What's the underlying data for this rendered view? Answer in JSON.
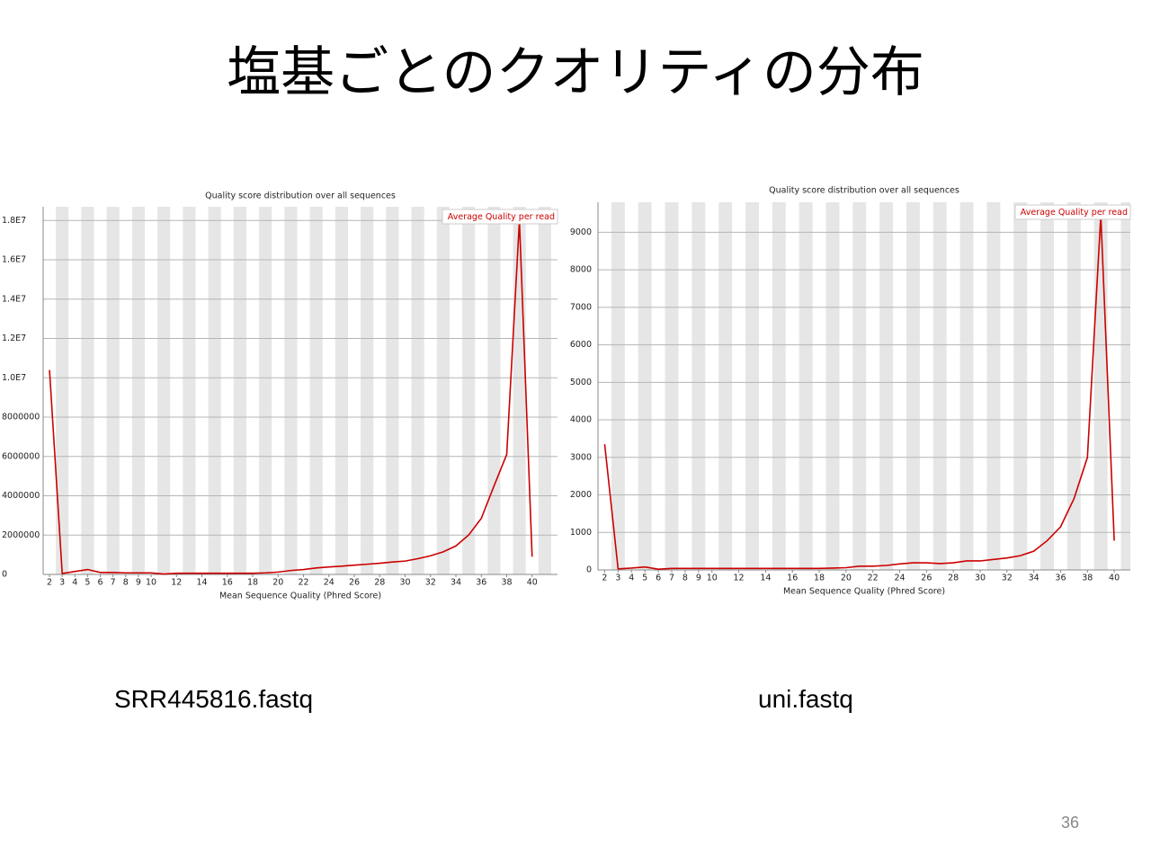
{
  "slide_title": "塩基ごとのクオリティの分布",
  "chart_data": [
    {
      "type": "line",
      "title": "Quality score distribution over all sequences",
      "x_label": "Mean Sequence Quality (Phred Score)",
      "x": [
        2,
        3,
        4,
        5,
        6,
        7,
        8,
        9,
        10,
        11,
        12,
        13,
        14,
        15,
        16,
        17,
        18,
        19,
        20,
        21,
        22,
        23,
        24,
        25,
        26,
        27,
        28,
        29,
        30,
        31,
        32,
        33,
        34,
        35,
        36,
        37,
        38,
        39,
        40
      ],
      "series": [
        {
          "name": "Average Quality per read",
          "color": "#cc0000",
          "values": [
            10400000,
            50000,
            150000,
            250000,
            100000,
            100000,
            80000,
            80000,
            80000,
            20000,
            60000,
            60000,
            60000,
            60000,
            60000,
            60000,
            60000,
            80000,
            120000,
            200000,
            250000,
            330000,
            380000,
            420000,
            470000,
            520000,
            570000,
            630000,
            680000,
            800000,
            950000,
            1150000,
            1450000,
            2000000,
            2850000,
            4500000,
            6100000,
            18000000,
            900000
          ]
        }
      ],
      "xlim": [
        1.5,
        42
      ],
      "xticks": [
        2,
        3,
        4,
        5,
        6,
        7,
        8,
        9,
        10,
        12,
        14,
        16,
        18,
        20,
        22,
        24,
        26,
        28,
        30,
        32,
        34,
        36,
        38,
        40
      ],
      "ylim": [
        0,
        18700000
      ],
      "yticks": [
        0,
        2000000,
        4000000,
        6000000,
        8000000,
        {
          "value": 10000000,
          "label": "1.0E7"
        },
        {
          "value": 12000000,
          "label": "1.2E7"
        },
        {
          "value": 14000000,
          "label": "1.4E7"
        },
        {
          "value": 16000000,
          "label": "1.6E7"
        },
        {
          "value": 18000000,
          "label": "1.8E7"
        }
      ],
      "grid": true,
      "stripes": true,
      "legend": "upper right"
    },
    {
      "type": "line",
      "title": "Quality score distribution over all sequences",
      "x_label": "Mean Sequence Quality (Phred Score)",
      "x": [
        2,
        3,
        4,
        5,
        6,
        7,
        8,
        9,
        10,
        11,
        12,
        13,
        14,
        15,
        16,
        17,
        18,
        19,
        20,
        21,
        22,
        23,
        24,
        25,
        26,
        27,
        28,
        29,
        30,
        31,
        32,
        33,
        34,
        35,
        36,
        37,
        38,
        39,
        40
      ],
      "series": [
        {
          "name": "Average Quality per read",
          "color": "#cc0000",
          "values": [
            3350,
            30,
            50,
            80,
            20,
            40,
            40,
            40,
            40,
            40,
            40,
            40,
            40,
            40,
            40,
            40,
            40,
            50,
            60,
            100,
            100,
            120,
            160,
            190,
            190,
            170,
            190,
            240,
            240,
            280,
            320,
            380,
            500,
            780,
            1150,
            1900,
            3000,
            9450,
            780
          ]
        }
      ],
      "xlim": [
        1.5,
        41.2
      ],
      "xticks": [
        2,
        3,
        4,
        5,
        6,
        7,
        8,
        9,
        10,
        12,
        14,
        16,
        18,
        20,
        22,
        24,
        26,
        28,
        30,
        32,
        34,
        36,
        38,
        40
      ],
      "ylim": [
        0,
        9800
      ],
      "yticks": [
        0,
        1000,
        2000,
        3000,
        4000,
        5000,
        6000,
        7000,
        8000,
        9000
      ],
      "grid": true,
      "stripes": true,
      "legend": "upper right"
    }
  ],
  "captions": [
    "SRR445816.fastq",
    "uni.fastq"
  ],
  "page_number": 36
}
